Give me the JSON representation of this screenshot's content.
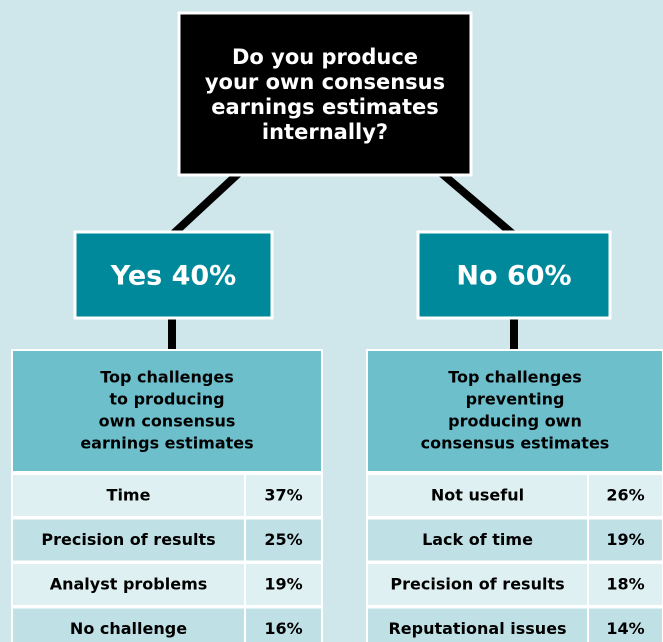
{
  "question": [
    "Do you produce",
    "your own consensus",
    "earnings estimates",
    "internally?"
  ],
  "branches": [
    {
      "answer": "Yes 40%",
      "table": {
        "header": [
          "Top challenges",
          "to producing",
          "own consensus",
          "earnings estimates"
        ],
        "rows": [
          [
            "Time",
            "37%"
          ],
          [
            "Precision of results",
            "25%"
          ],
          [
            "Analyst problems",
            "19%"
          ],
          [
            "No challenge",
            "16%"
          ]
        ]
      }
    },
    {
      "answer": "No 60%",
      "table": {
        "header": [
          "Top challenges",
          "preventing",
          "producing own",
          "consensus estimates"
        ],
        "rows": [
          [
            "Not useful",
            "26%"
          ],
          [
            "Lack of time",
            "19%"
          ],
          [
            "Precision of results",
            "18%"
          ],
          [
            "Reputational issues",
            "14%"
          ]
        ]
      }
    }
  ]
}
